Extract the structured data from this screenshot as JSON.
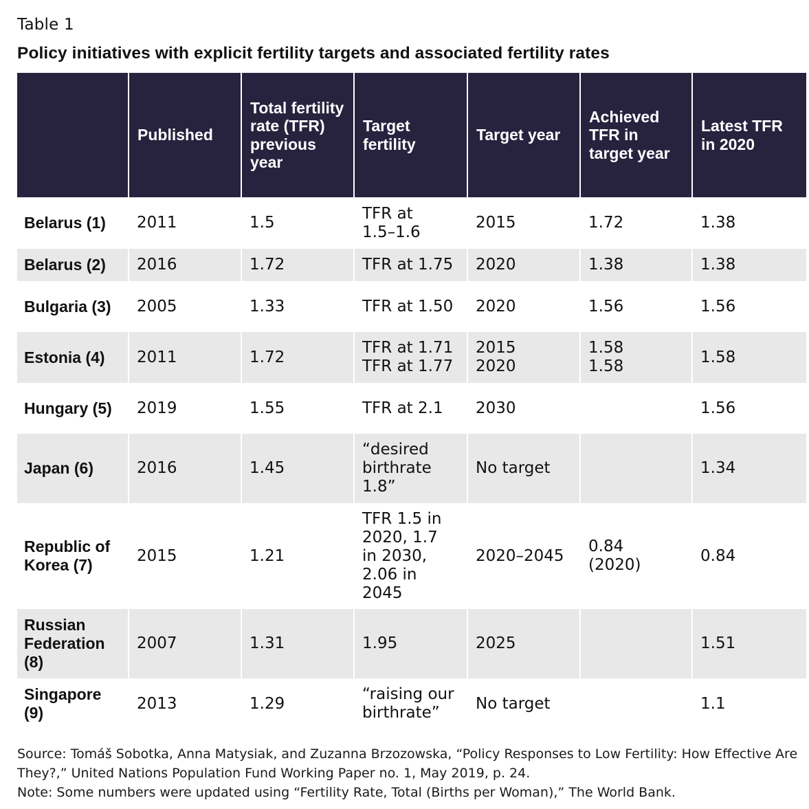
{
  "label": "Table 1",
  "title": "Policy initiatives with explicit fertility targets and associated fertility rates",
  "headers": [
    "",
    "Published",
    "Total fertility rate (TFR) previous year",
    "Target fertility",
    "Target year",
    "Achieved TFR in target year",
    "Latest TFR in 2020"
  ],
  "rows": [
    {
      "country": "Belarus (1)",
      "published": "2011",
      "tfr_prev": "1.5",
      "target_fertility": [
        "TFR at",
        "1.5–1.6"
      ],
      "target_year": [
        "2015"
      ],
      "achieved": [
        "1.72"
      ],
      "latest": "1.38"
    },
    {
      "country": "Belarus (2)",
      "published": "2016",
      "tfr_prev": "1.72",
      "target_fertility": [
        "TFR at 1.75"
      ],
      "target_year": [
        "2020"
      ],
      "achieved": [
        "1.38"
      ],
      "latest": "1.38"
    },
    {
      "country": "Bulgaria (3)",
      "published": "2005",
      "tfr_prev": "1.33",
      "target_fertility": [
        "TFR at 1.50"
      ],
      "target_year": [
        "2020"
      ],
      "achieved": [
        "1.56"
      ],
      "latest": "1.56"
    },
    {
      "country": "Estonia (4)",
      "published": "2011",
      "tfr_prev": "1.72",
      "target_fertility": [
        "TFR at 1.71",
        "TFR at 1.77"
      ],
      "target_year": [
        "2015",
        "2020"
      ],
      "achieved": [
        "1.58",
        "1.58"
      ],
      "latest": "1.58"
    },
    {
      "country": "Hungary (5)",
      "published": "2019",
      "tfr_prev": "1.55",
      "target_fertility": [
        "TFR at 2.1"
      ],
      "target_year": [
        "2030"
      ],
      "achieved": [],
      "latest": "1.56"
    },
    {
      "country": "Japan (6)",
      "published": "2016",
      "tfr_prev": "1.45",
      "target_fertility": [
        "“desired",
        "birthrate",
        "1.8”"
      ],
      "target_year": [
        "No target"
      ],
      "achieved": [],
      "latest": "1.34"
    },
    {
      "country": "Republic of Korea (7)",
      "published": "2015",
      "tfr_prev": "1.21",
      "target_fertility": [
        "TFR 1.5 in",
        "2020, 1.7",
        "in 2030,",
        "2.06 in",
        "2045"
      ],
      "target_year": [
        "2020–2045"
      ],
      "achieved": [
        "0.84",
        "(2020)"
      ],
      "latest": "0.84"
    },
    {
      "country": "Russian Federation (8)",
      "published": "2007",
      "tfr_prev": "1.31",
      "target_fertility": [
        "1.95"
      ],
      "target_year": [
        "2025"
      ],
      "achieved": [],
      "latest": "1.51"
    },
    {
      "country": "Singapore (9)",
      "published": "2013",
      "tfr_prev": "1.29",
      "target_fertility": [
        "“raising our",
        "birthrate”"
      ],
      "target_year": [
        "No target"
      ],
      "achieved": [],
      "latest": "1.1"
    }
  ],
  "source_note": "Source: Tomáš Sobotka, Anna Matysiak, and Zuzanna Brzozowska, “Policy Responses to Low Fertility: How Effective Are They?,” United Nations Population Fund Working Paper no. 1, May 2019, p. 24.",
  "note": "Note: Some numbers were updated using “Fertility Rate, Total (Births per Woman),” The World Bank."
}
